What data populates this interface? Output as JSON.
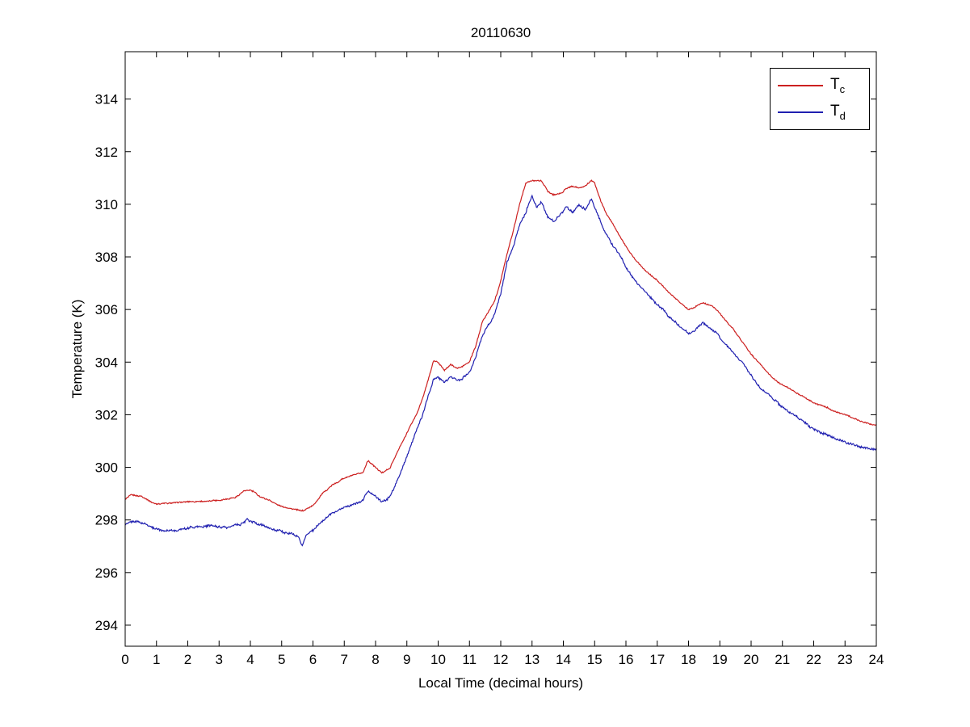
{
  "chart_data": {
    "type": "line",
    "title": "20110630",
    "xlabel": "Local Time (decimal hours)",
    "ylabel": "Temperature (K)",
    "xlim": [
      0,
      24
    ],
    "ylim": [
      293.2,
      315.8
    ],
    "xticks": [
      0,
      1,
      2,
      3,
      4,
      5,
      6,
      7,
      8,
      9,
      10,
      11,
      12,
      13,
      14,
      15,
      16,
      17,
      18,
      19,
      20,
      21,
      22,
      23,
      24
    ],
    "yticks": [
      294,
      296,
      298,
      300,
      302,
      304,
      306,
      308,
      310,
      312,
      314
    ],
    "grid": false,
    "legend_position": "top-right",
    "series": [
      {
        "name": "T_c",
        "label_main": "T",
        "label_sub": "c",
        "color": "#cc2020",
        "noise": 0.07,
        "points": [
          [
            0,
            298.8
          ],
          [
            0.2,
            298.95
          ],
          [
            0.5,
            298.9
          ],
          [
            0.8,
            298.7
          ],
          [
            1,
            298.6
          ],
          [
            1.5,
            298.65
          ],
          [
            2,
            298.7
          ],
          [
            2.5,
            298.7
          ],
          [
            3,
            298.75
          ],
          [
            3.5,
            298.85
          ],
          [
            3.8,
            299.1
          ],
          [
            4,
            299.15
          ],
          [
            4.3,
            298.9
          ],
          [
            4.6,
            298.75
          ],
          [
            5,
            298.5
          ],
          [
            5.4,
            298.4
          ],
          [
            5.7,
            298.35
          ],
          [
            6,
            298.55
          ],
          [
            6.3,
            299.0
          ],
          [
            6.6,
            299.3
          ],
          [
            7,
            299.6
          ],
          [
            7.3,
            299.7
          ],
          [
            7.6,
            299.8
          ],
          [
            7.75,
            300.25
          ],
          [
            8,
            300.0
          ],
          [
            8.2,
            299.8
          ],
          [
            8.45,
            299.95
          ],
          [
            8.7,
            300.6
          ],
          [
            9,
            301.3
          ],
          [
            9.3,
            302.0
          ],
          [
            9.5,
            302.6
          ],
          [
            9.7,
            303.4
          ],
          [
            9.85,
            304.05
          ],
          [
            10,
            304.0
          ],
          [
            10.2,
            303.7
          ],
          [
            10.4,
            303.9
          ],
          [
            10.6,
            303.75
          ],
          [
            10.8,
            303.85
          ],
          [
            11,
            304.0
          ],
          [
            11.2,
            304.6
          ],
          [
            11.4,
            305.5
          ],
          [
            11.6,
            305.9
          ],
          [
            11.8,
            306.3
          ],
          [
            12,
            307.1
          ],
          [
            12.2,
            308.1
          ],
          [
            12.4,
            309.0
          ],
          [
            12.6,
            310.0
          ],
          [
            12.8,
            310.8
          ],
          [
            13,
            310.9
          ],
          [
            13.3,
            310.9
          ],
          [
            13.5,
            310.5
          ],
          [
            13.7,
            310.35
          ],
          [
            13.9,
            310.4
          ],
          [
            14.1,
            310.6
          ],
          [
            14.3,
            310.7
          ],
          [
            14.5,
            310.6
          ],
          [
            14.7,
            310.7
          ],
          [
            14.9,
            310.9
          ],
          [
            15,
            310.8
          ],
          [
            15.2,
            310.1
          ],
          [
            15.4,
            309.6
          ],
          [
            15.6,
            309.2
          ],
          [
            15.8,
            308.8
          ],
          [
            16,
            308.4
          ],
          [
            16.3,
            307.9
          ],
          [
            16.6,
            307.5
          ],
          [
            16.9,
            307.2
          ],
          [
            17.1,
            307.0
          ],
          [
            17.4,
            306.6
          ],
          [
            17.7,
            306.3
          ],
          [
            18,
            306.0
          ],
          [
            18.2,
            306.1
          ],
          [
            18.45,
            306.25
          ],
          [
            18.7,
            306.15
          ],
          [
            18.9,
            306.0
          ],
          [
            19.1,
            305.7
          ],
          [
            19.4,
            305.3
          ],
          [
            19.7,
            304.8
          ],
          [
            20,
            304.3
          ],
          [
            20.3,
            303.9
          ],
          [
            20.6,
            303.5
          ],
          [
            20.9,
            303.2
          ],
          [
            21.2,
            303.0
          ],
          [
            21.5,
            302.8
          ],
          [
            21.8,
            302.6
          ],
          [
            22.1,
            302.4
          ],
          [
            22.4,
            302.3
          ],
          [
            22.7,
            302.1
          ],
          [
            23,
            302.0
          ],
          [
            23.3,
            301.85
          ],
          [
            23.6,
            301.7
          ],
          [
            23.8,
            301.65
          ],
          [
            24,
            301.6
          ]
        ]
      },
      {
        "name": "T_d",
        "label_main": "T",
        "label_sub": "d",
        "color": "#2020b0",
        "noise": 0.12,
        "points": [
          [
            0,
            297.85
          ],
          [
            0.3,
            297.95
          ],
          [
            0.6,
            297.85
          ],
          [
            0.9,
            297.7
          ],
          [
            1.2,
            297.6
          ],
          [
            1.6,
            297.6
          ],
          [
            2,
            297.7
          ],
          [
            2.4,
            297.75
          ],
          [
            2.8,
            297.8
          ],
          [
            3.1,
            297.7
          ],
          [
            3.4,
            297.75
          ],
          [
            3.7,
            297.85
          ],
          [
            3.9,
            298.0
          ],
          [
            4.1,
            297.9
          ],
          [
            4.4,
            297.8
          ],
          [
            4.7,
            297.65
          ],
          [
            5,
            297.55
          ],
          [
            5.3,
            297.5
          ],
          [
            5.55,
            297.35
          ],
          [
            5.65,
            297.0
          ],
          [
            5.8,
            297.45
          ],
          [
            6,
            297.6
          ],
          [
            6.3,
            297.95
          ],
          [
            6.6,
            298.25
          ],
          [
            7,
            298.5
          ],
          [
            7.3,
            298.6
          ],
          [
            7.6,
            298.75
          ],
          [
            7.75,
            299.1
          ],
          [
            8,
            298.9
          ],
          [
            8.2,
            298.7
          ],
          [
            8.45,
            298.85
          ],
          [
            8.7,
            299.5
          ],
          [
            9,
            300.4
          ],
          [
            9.3,
            301.4
          ],
          [
            9.5,
            302.0
          ],
          [
            9.7,
            302.8
          ],
          [
            9.85,
            303.35
          ],
          [
            10,
            303.45
          ],
          [
            10.2,
            303.2
          ],
          [
            10.4,
            303.45
          ],
          [
            10.6,
            303.3
          ],
          [
            10.8,
            303.4
          ],
          [
            11,
            303.6
          ],
          [
            11.2,
            304.2
          ],
          [
            11.4,
            305.0
          ],
          [
            11.6,
            305.4
          ],
          [
            11.8,
            305.8
          ],
          [
            12,
            306.6
          ],
          [
            12.2,
            307.8
          ],
          [
            12.4,
            308.4
          ],
          [
            12.6,
            309.2
          ],
          [
            12.8,
            309.7
          ],
          [
            13,
            310.3
          ],
          [
            13.15,
            309.9
          ],
          [
            13.3,
            310.1
          ],
          [
            13.5,
            309.5
          ],
          [
            13.7,
            309.35
          ],
          [
            13.9,
            309.6
          ],
          [
            14.1,
            309.9
          ],
          [
            14.3,
            309.7
          ],
          [
            14.5,
            310.0
          ],
          [
            14.7,
            309.8
          ],
          [
            14.9,
            310.2
          ],
          [
            15,
            309.9
          ],
          [
            15.2,
            309.3
          ],
          [
            15.4,
            308.8
          ],
          [
            15.6,
            308.4
          ],
          [
            15.8,
            308.1
          ],
          [
            16,
            307.6
          ],
          [
            16.3,
            307.1
          ],
          [
            16.6,
            306.7
          ],
          [
            16.9,
            306.3
          ],
          [
            17.1,
            306.1
          ],
          [
            17.4,
            305.7
          ],
          [
            17.7,
            305.4
          ],
          [
            18,
            305.1
          ],
          [
            18.2,
            305.2
          ],
          [
            18.45,
            305.5
          ],
          [
            18.7,
            305.3
          ],
          [
            18.9,
            305.1
          ],
          [
            19.1,
            304.8
          ],
          [
            19.4,
            304.4
          ],
          [
            19.7,
            304.0
          ],
          [
            20,
            303.5
          ],
          [
            20.3,
            303.0
          ],
          [
            20.6,
            302.7
          ],
          [
            20.9,
            302.4
          ],
          [
            21.2,
            302.1
          ],
          [
            21.5,
            301.9
          ],
          [
            21.8,
            301.6
          ],
          [
            22.1,
            301.4
          ],
          [
            22.4,
            301.25
          ],
          [
            22.7,
            301.1
          ],
          [
            23,
            300.95
          ],
          [
            23.3,
            300.85
          ],
          [
            23.6,
            300.75
          ],
          [
            23.8,
            300.7
          ],
          [
            24,
            300.7
          ]
        ]
      }
    ]
  }
}
